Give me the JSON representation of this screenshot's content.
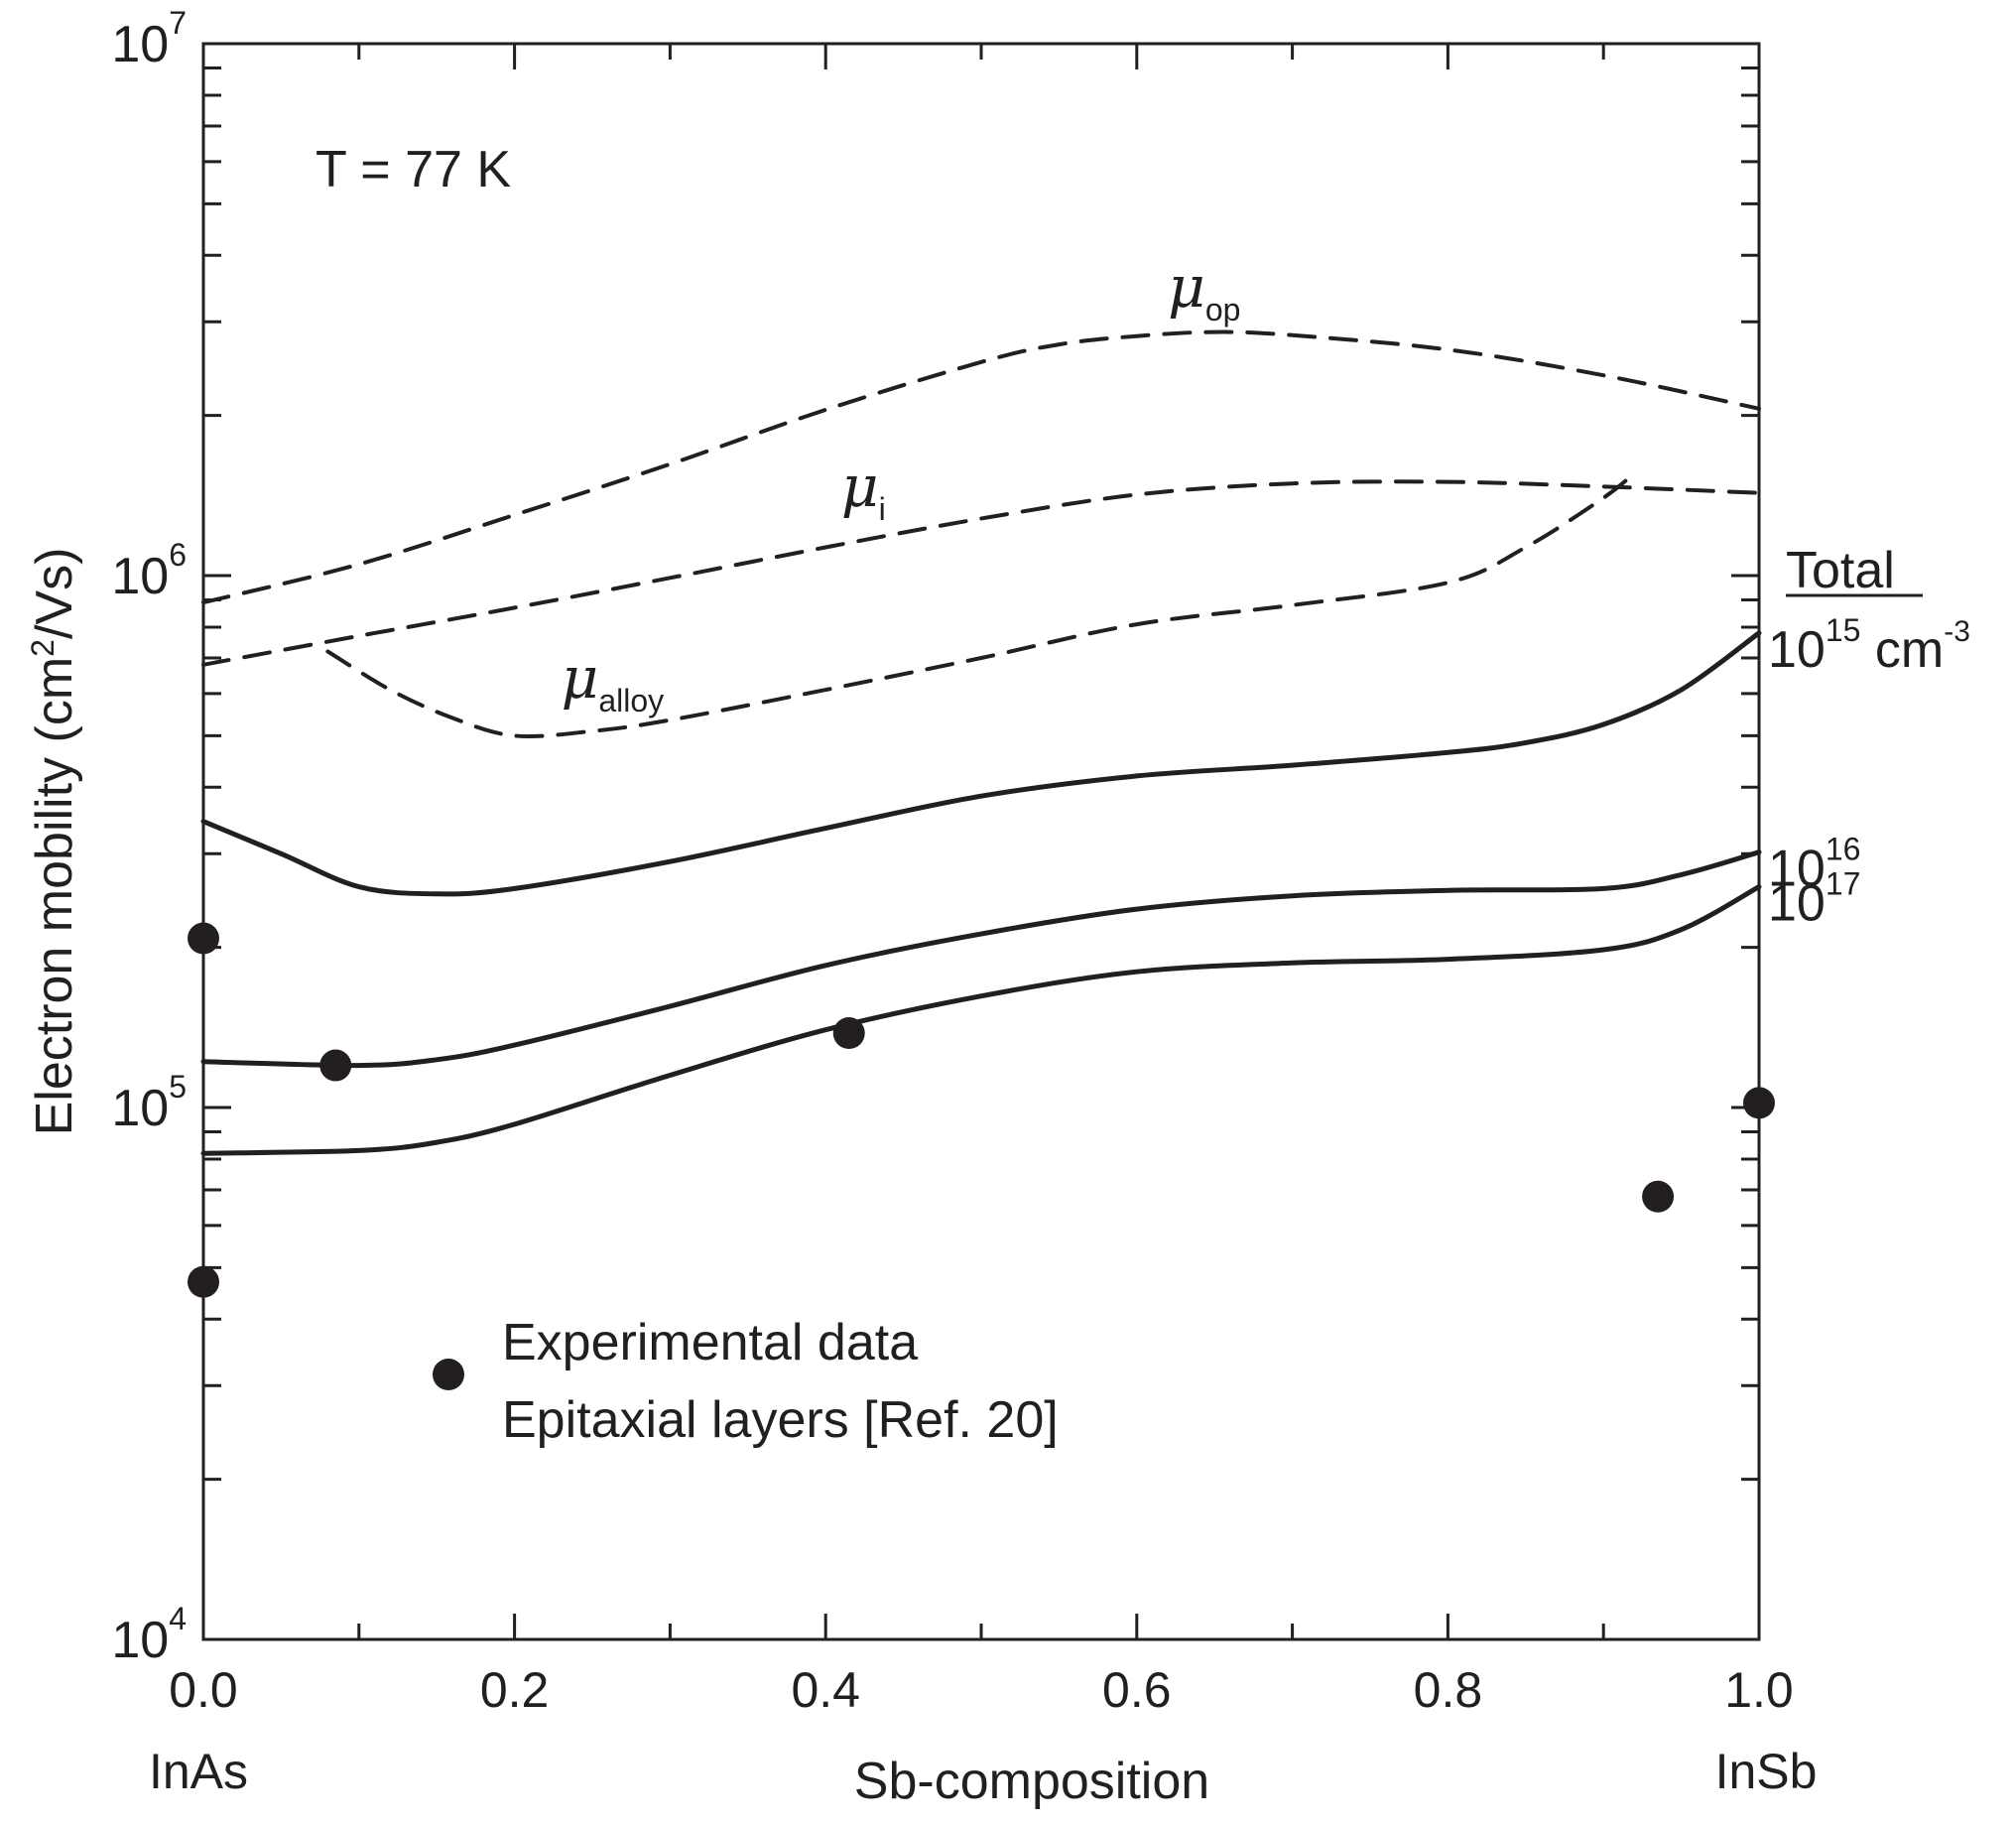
{
  "chart_data": {
    "type": "line",
    "title": "",
    "xlabel": "Sb-composition",
    "ylabel": "Electron mobility (cm²/Vs)",
    "ylabel_base": "Electron mobility (cm",
    "ylabel_sup": "2",
    "ylabel_tail": "/Vs)",
    "xscale": "linear",
    "yscale": "log",
    "xlim": [
      0.0,
      1.0
    ],
    "ylim": [
      10000,
      10000000
    ],
    "x_ticks": [
      {
        "value": 0.0,
        "label": "0.0"
      },
      {
        "value": 0.2,
        "label": "0.2"
      },
      {
        "value": 0.4,
        "label": "0.4"
      },
      {
        "value": 0.6,
        "label": "0.6"
      },
      {
        "value": 0.8,
        "label": "0.8"
      },
      {
        "value": 1.0,
        "label": "1.0"
      }
    ],
    "y_ticks": [
      {
        "value": 10000,
        "base": "10",
        "exp": "4"
      },
      {
        "value": 100000,
        "base": "10",
        "exp": "5"
      },
      {
        "value": 1000000,
        "base": "10",
        "exp": "6"
      },
      {
        "value": 10000000,
        "base": "10",
        "exp": "7"
      }
    ],
    "x_endpoint_labels": [
      {
        "value": 0.0,
        "label": "InAs"
      },
      {
        "value": 1.0,
        "label": "InSb"
      }
    ],
    "temperature_label": "T = 77 K",
    "total_header": "Total",
    "series": [
      {
        "name": "μ_op",
        "label": "μ",
        "label_sub": "op",
        "style": "dashed",
        "label_at": {
          "x": 0.62,
          "y": 3200000
        },
        "x": [
          0.0,
          0.1,
          0.2,
          0.3,
          0.4,
          0.5,
          0.55,
          0.6,
          0.65,
          0.7,
          0.8,
          0.9,
          1.0
        ],
        "y": [
          890000,
          1050000,
          1300000,
          1620000,
          2050000,
          2520000,
          2720000,
          2820000,
          2870000,
          2830000,
          2660000,
          2380000,
          2060000
        ]
      },
      {
        "name": "μ_i",
        "label": "μ",
        "label_sub": "i",
        "style": "dashed",
        "label_at": {
          "x": 0.41,
          "y": 1350000
        },
        "x": [
          0.0,
          0.1,
          0.2,
          0.3,
          0.4,
          0.5,
          0.6,
          0.7,
          0.8,
          0.9,
          1.0
        ],
        "y": [
          680000,
          770000,
          870000,
          990000,
          1130000,
          1280000,
          1420000,
          1490000,
          1500000,
          1470000,
          1430000
        ]
      },
      {
        "name": "μ_alloy",
        "label": "μ",
        "label_sub": "alloy",
        "style": "dashed",
        "label_at": {
          "x": 0.23,
          "y": 590000
        },
        "x": [
          0.08,
          0.12,
          0.16,
          0.2,
          0.25,
          0.3,
          0.4,
          0.5,
          0.6,
          0.7,
          0.8,
          0.85,
          0.9,
          0.92
        ],
        "y": [
          720000,
          610000,
          540000,
          500000,
          510000,
          535000,
          610000,
          700000,
          810000,
          880000,
          970000,
          1130000,
          1400000,
          1560000
        ]
      },
      {
        "name": "Total 10^15 cm^-3",
        "style": "solid",
        "end_label": {
          "base": "10",
          "exp": "15",
          "unit": " cm",
          "unit_exp": "-3"
        },
        "x": [
          0.0,
          0.05,
          0.1,
          0.15,
          0.2,
          0.3,
          0.4,
          0.5,
          0.6,
          0.7,
          0.8,
          0.85,
          0.9,
          0.95,
          1.0
        ],
        "y": [
          345000,
          300000,
          260000,
          252000,
          258000,
          290000,
          335000,
          385000,
          420000,
          440000,
          465000,
          485000,
          525000,
          610000,
          780000
        ]
      },
      {
        "name": "Total 10^16 cm^-3",
        "style": "solid",
        "end_label": {
          "base": "10",
          "exp": "16"
        },
        "x": [
          0.0,
          0.1,
          0.15,
          0.2,
          0.3,
          0.4,
          0.5,
          0.6,
          0.7,
          0.8,
          0.9,
          0.95,
          1.0
        ],
        "y": [
          122000,
          120000,
          123000,
          131000,
          155000,
          185000,
          212000,
          236000,
          250000,
          256000,
          258000,
          274000,
          302000
        ]
      },
      {
        "name": "Total 10^17 cm^-3",
        "style": "solid",
        "end_label": {
          "base": "10",
          "exp": "17"
        },
        "x": [
          0.0,
          0.1,
          0.15,
          0.2,
          0.3,
          0.4,
          0.5,
          0.6,
          0.7,
          0.8,
          0.9,
          0.95,
          1.0
        ],
        "y": [
          82000,
          83000,
          86000,
          93000,
          115000,
          140000,
          162000,
          180000,
          187000,
          190000,
          198000,
          216000,
          260000
        ]
      }
    ],
    "scatter": {
      "name": "Experimental data",
      "legend": [
        "Experimental data",
        "Epitaxial layers [Ref. 20]"
      ],
      "points": [
        {
          "x": 0.0,
          "y": 208000
        },
        {
          "x": 0.0,
          "y": 47000
        },
        {
          "x": 0.085,
          "y": 120000
        },
        {
          "x": 0.415,
          "y": 138000
        },
        {
          "x": 0.935,
          "y": 68000
        },
        {
          "x": 1.0,
          "y": 102000
        }
      ]
    }
  }
}
